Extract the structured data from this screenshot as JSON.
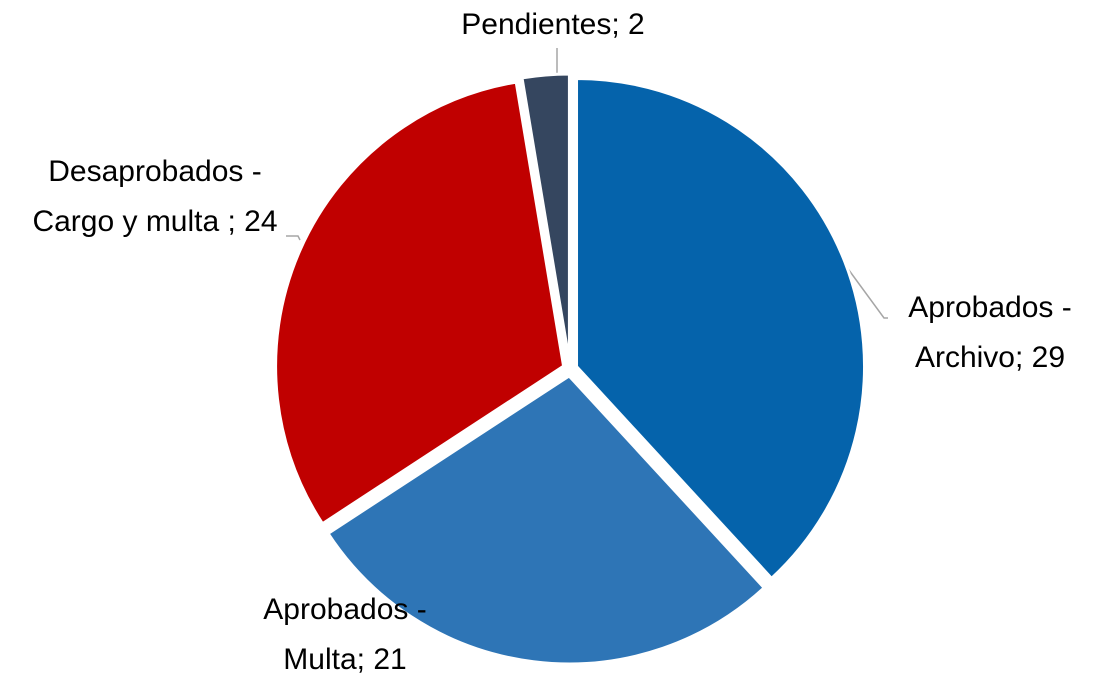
{
  "chart_data": {
    "type": "pie",
    "values": [
      29,
      21,
      24,
      2
    ],
    "value_labels": [
      "Aprobados - Archivo; 29",
      "Aprobados - Multa; 21",
      "Desaprobados - Cargo y multa ; 24",
      "Pendientes; 2"
    ],
    "colors": [
      "#0563AB",
      "#2E75B6",
      "#C00000",
      "#35465F"
    ]
  }
}
